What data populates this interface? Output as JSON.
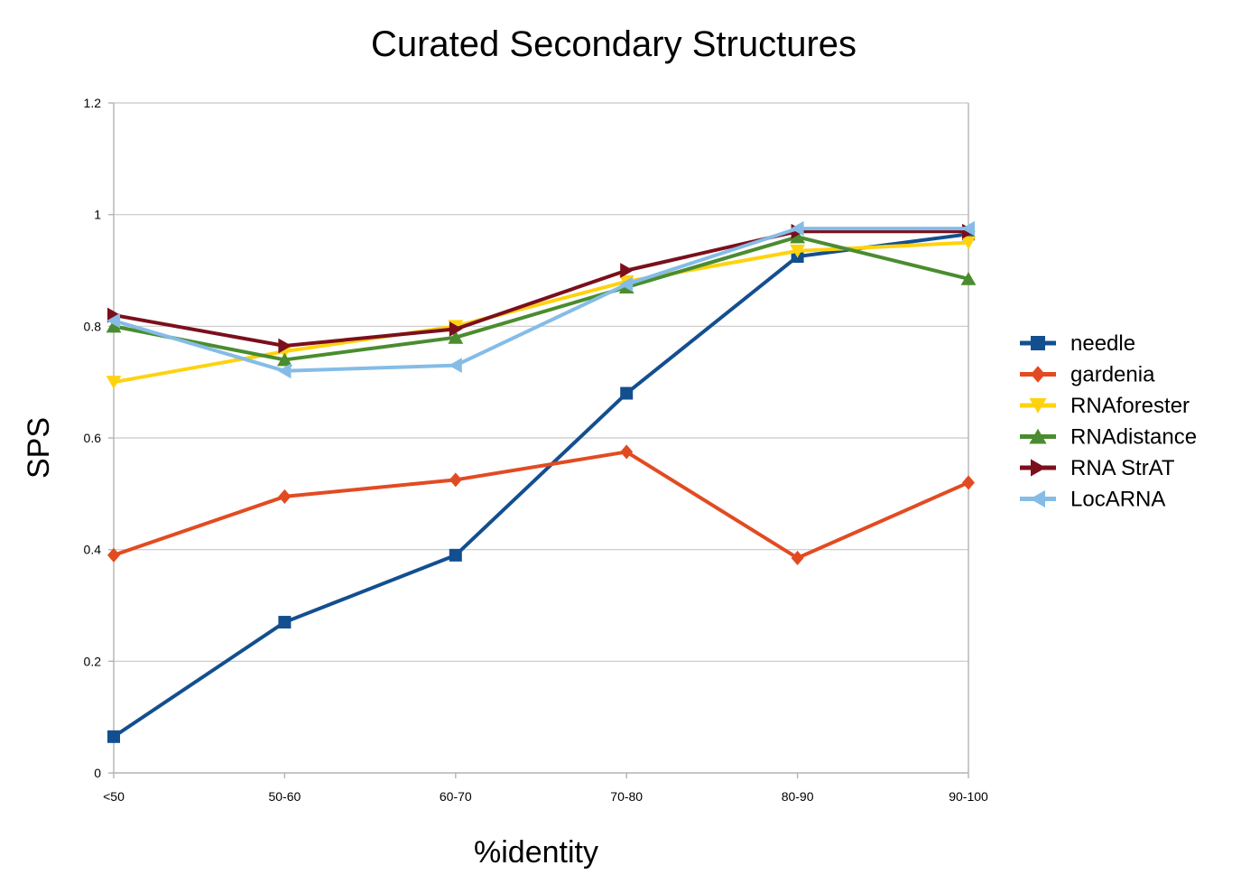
{
  "chart_data": {
    "type": "line",
    "title": "Curated Secondary Structures",
    "xlabel": "%identity",
    "ylabel": "SPS",
    "categories": [
      "<50",
      "50-60",
      "60-70",
      "70-80",
      "80-90",
      "90-100"
    ],
    "y_ticks": [
      "0",
      "0.2",
      "0.4",
      "0.6",
      "0.8",
      "1",
      "1.2"
    ],
    "ylim": [
      0,
      1.2
    ],
    "grid": true,
    "legend_position": "right",
    "series": [
      {
        "name": "needle",
        "color": "#134f8f",
        "marker": "square",
        "values": [
          0.065,
          0.27,
          0.39,
          0.68,
          0.925,
          0.965
        ]
      },
      {
        "name": "gardenia",
        "color": "#e24b22",
        "marker": "diamond",
        "values": [
          0.39,
          0.495,
          0.525,
          0.575,
          0.385,
          0.52
        ]
      },
      {
        "name": "RNAforester",
        "color": "#ffd20f",
        "marker": "triangle-down",
        "values": [
          0.7,
          0.755,
          0.8,
          0.88,
          0.935,
          0.95
        ]
      },
      {
        "name": "RNAdistance",
        "color": "#4a8c2f",
        "marker": "triangle-up",
        "values": [
          0.8,
          0.74,
          0.78,
          0.87,
          0.96,
          0.885
        ]
      },
      {
        "name": "RNA StrAT",
        "color": "#7b0f1c",
        "marker": "triangle-right",
        "values": [
          0.82,
          0.765,
          0.795,
          0.9,
          0.97,
          0.97
        ]
      },
      {
        "name": "LocARNA",
        "color": "#85bce6",
        "marker": "triangle-left",
        "values": [
          0.81,
          0.72,
          0.73,
          0.875,
          0.975,
          0.975
        ]
      }
    ]
  }
}
